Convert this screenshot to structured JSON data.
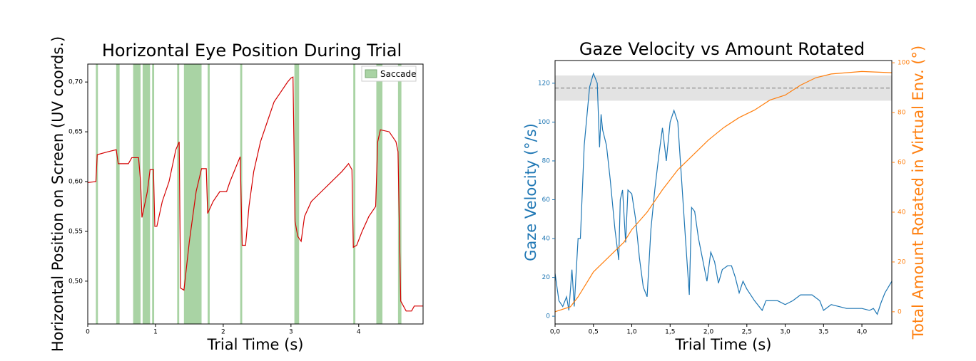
{
  "chart_data": [
    {
      "type": "line",
      "title": "Horizontal Eye Position During Trial",
      "x_label": "Trial Time (s)",
      "y_label": "Horizontal Position on Screen (UV coords.)",
      "xlim": [
        0,
        4.95
      ],
      "xticks": [
        0,
        1,
        2,
        3,
        4
      ],
      "ylim": [
        0.457,
        0.718
      ],
      "yticks": [
        {
          "value": 0.5,
          "label": "0,50"
        },
        {
          "value": 0.55,
          "label": "0,55"
        },
        {
          "value": 0.6,
          "label": "0,60"
        },
        {
          "value": 0.65,
          "label": "0,65"
        },
        {
          "value": 0.7,
          "label": "0,70"
        }
      ],
      "legend": "upper right",
      "spans_name": "Saccade",
      "spans_color": "#a9d3a4",
      "spans": [
        [
          0.12,
          0.15
        ],
        [
          0.42,
          0.47
        ],
        [
          0.67,
          0.78
        ],
        [
          0.81,
          0.92
        ],
        [
          0.95,
          0.98
        ],
        [
          1.32,
          1.35
        ],
        [
          1.42,
          1.68
        ],
        [
          1.77,
          1.8
        ],
        [
          2.25,
          2.28
        ],
        [
          3.05,
          3.12
        ],
        [
          3.92,
          3.95
        ],
        [
          4.26,
          4.35
        ],
        [
          4.58,
          4.63
        ]
      ],
      "series": [
        {
          "color": "#d40000",
          "x": [
            0,
            0.12,
            0.14,
            0.3,
            0.42,
            0.45,
            0.6,
            0.65,
            0.75,
            0.78,
            0.8,
            0.85,
            0.88,
            0.92,
            0.97,
            0.99,
            1.02,
            1.1,
            1.2,
            1.3,
            1.35,
            1.37,
            1.42,
            1.5,
            1.6,
            1.68,
            1.75,
            1.77,
            1.85,
            1.95,
            2.05,
            2.1,
            2.25,
            2.28,
            2.33,
            2.38,
            2.45,
            2.55,
            2.65,
            2.75,
            2.85,
            2.95,
            3.0,
            3.03,
            3.06,
            3.1,
            3.15,
            3.2,
            3.3,
            3.45,
            3.6,
            3.75,
            3.85,
            3.9,
            3.92,
            3.97,
            4.05,
            4.15,
            4.25,
            4.28,
            4.32,
            4.45,
            4.55,
            4.58,
            4.62,
            4.7,
            4.78,
            4.82,
            4.95
          ],
          "values": [
            0.599,
            0.6,
            0.627,
            0.63,
            0.632,
            0.618,
            0.618,
            0.624,
            0.624,
            0.6,
            0.564,
            0.58,
            0.59,
            0.612,
            0.612,
            0.555,
            0.555,
            0.58,
            0.6,
            0.632,
            0.64,
            0.493,
            0.491,
            0.54,
            0.59,
            0.613,
            0.613,
            0.568,
            0.58,
            0.59,
            0.59,
            0.6,
            0.625,
            0.536,
            0.536,
            0.575,
            0.61,
            0.64,
            0.66,
            0.68,
            0.69,
            0.7,
            0.704,
            0.705,
            0.56,
            0.545,
            0.54,
            0.565,
            0.58,
            0.59,
            0.6,
            0.61,
            0.618,
            0.612,
            0.534,
            0.536,
            0.55,
            0.565,
            0.575,
            0.64,
            0.652,
            0.65,
            0.64,
            0.63,
            0.48,
            0.47,
            0.47,
            0.475,
            0.475
          ]
        }
      ]
    },
    {
      "type": "line",
      "title": "Gaze Velocity vs Amount Rotated",
      "x_label": "Trial Time (s)",
      "y_label": "Gaze Velocity (°/s)",
      "y2_label": "Total Amount Rotated in Virtual Env. (°)",
      "y_color": "#1f77b4",
      "y2_color": "#ff7f0e",
      "xlim": [
        0,
        4.39
      ],
      "xticks": [
        {
          "value": 0,
          "label": "0,0"
        },
        {
          "value": 0.5,
          "label": "0,5"
        },
        {
          "value": 1,
          "label": "1,0"
        },
        {
          "value": 1.5,
          "label": "1,5"
        },
        {
          "value": 2,
          "label": "2,0"
        },
        {
          "value": 2.5,
          "label": "2,5"
        },
        {
          "value": 3,
          "label": "3,0"
        },
        {
          "value": 3.5,
          "label": "3,5"
        },
        {
          "value": 4,
          "label": "4,0"
        }
      ],
      "ylim": [
        -4,
        131.7
      ],
      "yticks": [
        0,
        20,
        40,
        60,
        80,
        100,
        120
      ],
      "y2lim": [
        -4.9,
        100.9
      ],
      "y2ticks": [
        0,
        20,
        40,
        60,
        80,
        100
      ],
      "band": [
        111,
        124
      ],
      "band_color": "#e3e3e3",
      "hline": 117.5,
      "series": [
        {
          "color": "#1f77b4",
          "x": [
            0,
            0.05,
            0.1,
            0.15,
            0.18,
            0.22,
            0.25,
            0.3,
            0.33,
            0.38,
            0.45,
            0.5,
            0.55,
            0.58,
            0.6,
            0.62,
            0.67,
            0.72,
            0.78,
            0.83,
            0.85,
            0.88,
            0.92,
            0.95,
            1.0,
            1.05,
            1.1,
            1.15,
            1.2,
            1.25,
            1.3,
            1.35,
            1.4,
            1.45,
            1.5,
            1.55,
            1.6,
            1.65,
            1.7,
            1.75,
            1.78,
            1.82,
            1.87,
            1.92,
            1.98,
            2.03,
            2.08,
            2.13,
            2.18,
            2.25,
            2.3,
            2.35,
            2.4,
            2.45,
            2.5,
            2.6,
            2.7,
            2.75,
            2.9,
            3.0,
            3.1,
            3.2,
            3.35,
            3.45,
            3.5,
            3.6,
            3.8,
            4.0,
            4.1,
            4.15,
            4.2,
            4.25,
            4.3,
            4.39
          ],
          "values": [
            22,
            8,
            5,
            10,
            3,
            24,
            5,
            40,
            40,
            88,
            118,
            125,
            120,
            87,
            104,
            96,
            88,
            70,
            45,
            29,
            60,
            65,
            38,
            65,
            63,
            50,
            30,
            15,
            10,
            45,
            65,
            82,
            97,
            80,
            100,
            106,
            100,
            70,
            40,
            11,
            56,
            54,
            40,
            30,
            18,
            33,
            28,
            17,
            24,
            26,
            26,
            20,
            12,
            18,
            14,
            8,
            3,
            8,
            8,
            6,
            8,
            11,
            11,
            8,
            3,
            6,
            4,
            4,
            3,
            4,
            1,
            7,
            12,
            18
          ]
        },
        {
          "color": "#ff7f0e",
          "axis": "y2",
          "x": [
            0,
            0.2,
            0.3,
            0.4,
            0.5,
            0.7,
            0.9,
            1.0,
            1.2,
            1.4,
            1.6,
            1.8,
            2.0,
            2.2,
            2.4,
            2.6,
            2.8,
            3.0,
            3.2,
            3.4,
            3.6,
            3.8,
            4.0,
            4.39
          ],
          "values": [
            0,
            2,
            6,
            11,
            16,
            22,
            28,
            33,
            40,
            49,
            57,
            63,
            69,
            74,
            78,
            81,
            85,
            87,
            91,
            94,
            95.5,
            96,
            96.5,
            96
          ]
        }
      ]
    }
  ]
}
